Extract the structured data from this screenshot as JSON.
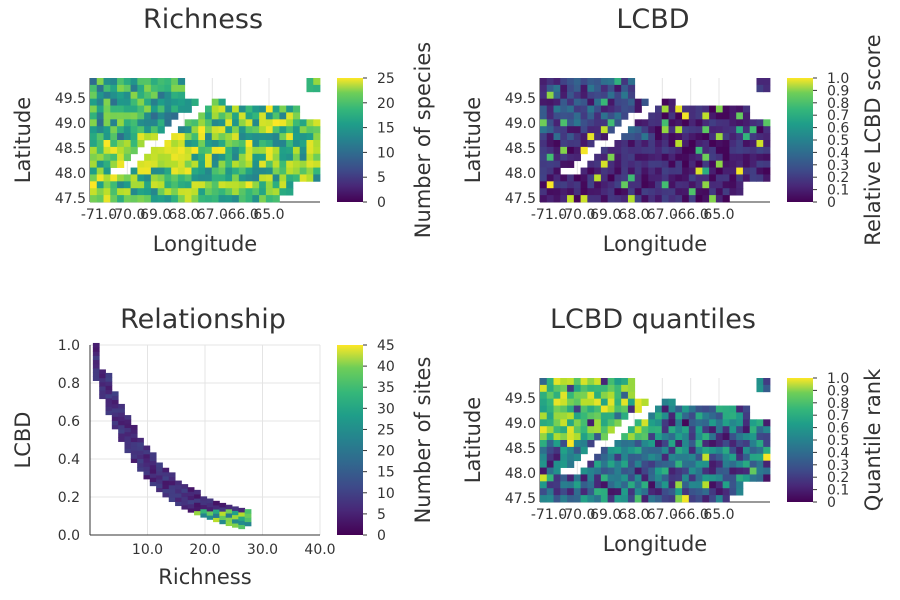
{
  "chart_data": [
    {
      "type": "heatmap",
      "title": "Richness",
      "xlabel": "Longitude",
      "ylabel": "Latitude",
      "x_ticks": [
        "-71.0",
        "-70.0",
        "69.0",
        "68.0",
        "67.0",
        "-66.0",
        "65.0"
      ],
      "y_ticks": [
        "49.5",
        "49.0",
        "48.5",
        "48.0",
        "47.5"
      ],
      "xlim": [
        -71.0,
        -64.2
      ],
      "ylim": [
        47.45,
        49.9
      ],
      "colorbar": {
        "label": "Number of species",
        "range": [
          0,
          25
        ],
        "ticks": [
          "25",
          "20",
          "15",
          "10",
          "5",
          "0"
        ]
      },
      "colormap": "viridis",
      "grid": true
    },
    {
      "type": "heatmap",
      "title": "LCBD",
      "xlabel": "Longitude",
      "ylabel": "Latitude",
      "x_ticks": [
        "-71.0",
        "-70.0",
        "69.0",
        "68.0",
        "67.0",
        "-66.0",
        "65.0"
      ],
      "y_ticks": [
        "49.5",
        "49.0",
        "48.5",
        "48.0",
        "47.5"
      ],
      "xlim": [
        -71.0,
        -64.2
      ],
      "ylim": [
        47.45,
        49.9
      ],
      "colorbar": {
        "label": "Relative LCBD score",
        "range": [
          0,
          1
        ],
        "ticks": [
          "1.0",
          "0.9",
          "0.8",
          "0.7",
          "0.6",
          "0.5",
          "0.4",
          "0.3",
          "0.2",
          "0.1",
          "0"
        ]
      },
      "colormap": "viridis",
      "grid": true
    },
    {
      "type": "heatmap",
      "title": "Relationship",
      "xlabel": "Richness",
      "ylabel": "LCBD",
      "x_ticks": [
        "10.0",
        "20.0",
        "30.0",
        "40.0"
      ],
      "y_ticks": [
        "1.0",
        "0.8",
        "0.6",
        "0.4",
        "0.2",
        "0.0"
      ],
      "xlim": [
        0,
        40
      ],
      "ylim": [
        0,
        1
      ],
      "colorbar": {
        "label": "Number of sites",
        "range": [
          0,
          45
        ],
        "ticks": [
          "45",
          "40",
          "35",
          "30",
          "25",
          "20",
          "15",
          "10",
          "5",
          "0"
        ]
      },
      "colormap": "viridis",
      "grid": true
    },
    {
      "type": "heatmap",
      "title": "LCBD quantiles",
      "xlabel": "Longitude",
      "ylabel": "Latitude",
      "x_ticks": [
        "-71.0",
        "-70.0",
        "69.0",
        "68.0",
        "67.0",
        "-66.0",
        "65.0"
      ],
      "y_ticks": [
        "49.5",
        "49.0",
        "48.5",
        "48.0",
        "47.5"
      ],
      "xlim": [
        -71.0,
        -64.2
      ],
      "ylim": [
        47.45,
        49.9
      ],
      "colorbar": {
        "label": "Quantile rank",
        "range": [
          0,
          1
        ],
        "ticks": [
          "1.0",
          "0.9",
          "0.8",
          "0.7",
          "0.6",
          "0.5",
          "0.4",
          "0.3",
          "0.2",
          "0.1",
          "0"
        ]
      },
      "colormap": "viridis",
      "grid": true
    }
  ]
}
